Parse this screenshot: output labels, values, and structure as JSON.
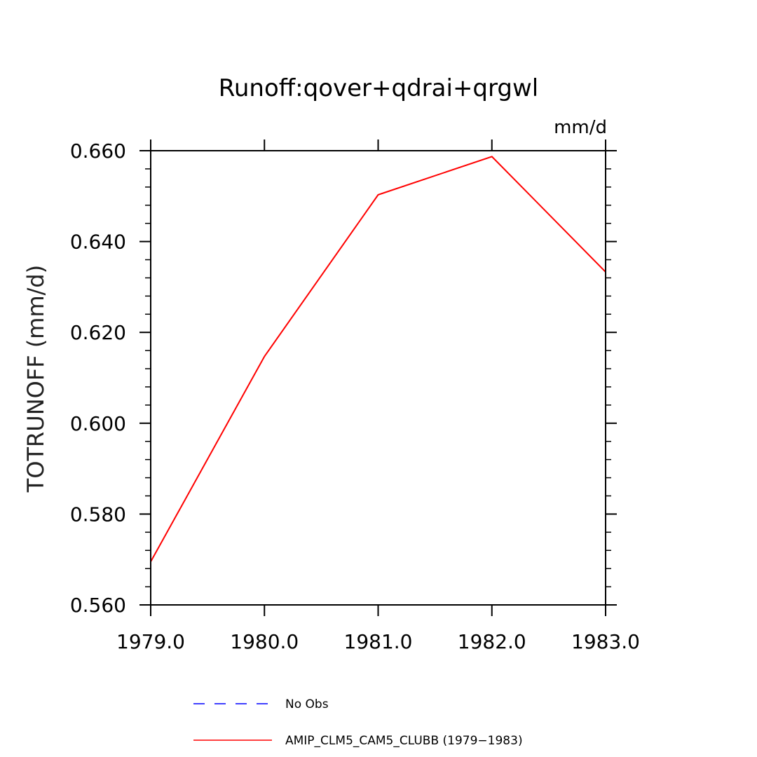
{
  "chart_data": {
    "type": "line",
    "title": "Runoff:qover+qdrai+qrgwl",
    "units": "mm/d",
    "ylabel": "TOTRUNOFF  (mm/d)",
    "xlabel": "",
    "x_ticks": [
      "1979.0",
      "1980.0",
      "1981.0",
      "1982.0",
      "1983.0"
    ],
    "y_ticks": [
      "0.560",
      "0.580",
      "0.600",
      "0.620",
      "0.640",
      "0.660"
    ],
    "xlim": [
      1979,
      1983
    ],
    "ylim": [
      0.56,
      0.66
    ],
    "grid": false,
    "legend_position": "bottom-center",
    "series": [
      {
        "name": "AMIP_CLM5_CAM5_CLUBB (1979-1983)",
        "color": "#ff0000",
        "dash": "solid",
        "x": [
          1979,
          1980,
          1981,
          1982,
          1983
        ],
        "y": [
          0.5695,
          0.6147,
          0.6503,
          0.6587,
          0.6333
        ]
      }
    ],
    "legend": [
      {
        "label": "No Obs",
        "color": "#0000ff",
        "dash": "dashed"
      },
      {
        "label": "AMIP_CLM5_CAM5_CLUBB (1979−1983)",
        "color": "#ff0000",
        "dash": "solid"
      }
    ]
  }
}
